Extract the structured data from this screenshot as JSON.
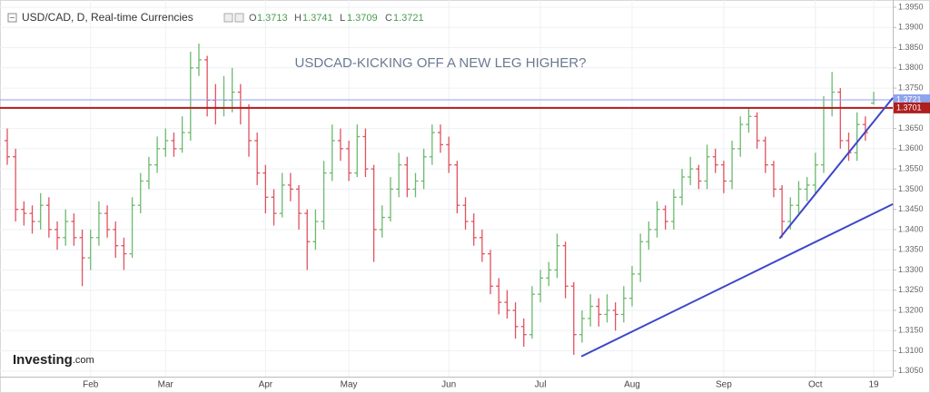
{
  "chart_data": {
    "type": "ohlc",
    "title": "USD/CAD, D, Real-time Currencies",
    "ohlc_labels": [
      "O",
      "H",
      "L",
      "C"
    ],
    "annotation": "USDCAD-KICKING OFF A NEW LEG HIGHER?",
    "logo": {
      "name": "Investing",
      "suffix": ".com"
    },
    "up_color": "#6cb96f",
    "down_color": "#e0525f",
    "categories": [
      null,
      null,
      null,
      null,
      null,
      null,
      null,
      null,
      null,
      null,
      "Feb",
      null,
      null,
      null,
      null,
      null,
      null,
      null,
      null,
      "Mar",
      null,
      null,
      null,
      null,
      null,
      null,
      null,
      null,
      null,
      null,
      null,
      "Apr",
      null,
      null,
      null,
      null,
      null,
      null,
      null,
      null,
      null,
      "May",
      null,
      null,
      null,
      null,
      null,
      null,
      null,
      null,
      null,
      null,
      null,
      "Jun",
      null,
      null,
      null,
      null,
      null,
      null,
      null,
      null,
      null,
      null,
      "Jul",
      null,
      null,
      null,
      null,
      null,
      null,
      null,
      null,
      null,
      null,
      "Aug",
      null,
      null,
      null,
      null,
      null,
      null,
      null,
      null,
      null,
      null,
      "Sep",
      null,
      null,
      null,
      null,
      null,
      null,
      null,
      null,
      null,
      null,
      "Oct",
      null,
      null,
      null,
      null,
      null,
      null,
      "19"
    ],
    "open": [
      1.362,
      1.358,
      1.345,
      1.344,
      1.342,
      1.346,
      1.34,
      1.338,
      1.342,
      1.338,
      1.333,
      1.338,
      1.344,
      1.34,
      1.336,
      1.334,
      1.346,
      1.352,
      1.356,
      1.36,
      1.362,
      1.36,
      1.364,
      1.38,
      1.382,
      1.372,
      1.37,
      1.372,
      1.374,
      1.37,
      1.362,
      1.354,
      1.348,
      1.344,
      1.351,
      1.35,
      1.344,
      1.337,
      1.342,
      1.354,
      1.362,
      1.36,
      1.354,
      1.363,
      1.355,
      1.34,
      1.343,
      1.35,
      1.356,
      1.35,
      1.352,
      1.358,
      1.364,
      1.361,
      1.356,
      1.346,
      1.342,
      1.338,
      1.334,
      1.326,
      1.322,
      1.32,
      1.316,
      1.314,
      1.324,
      1.328,
      1.33,
      1.336,
      1.326,
      1.314,
      1.318,
      1.321,
      1.319,
      1.32,
      1.319,
      1.323,
      1.329,
      1.337,
      1.34,
      1.345,
      1.342,
      1.348,
      1.353,
      1.355,
      1.352,
      1.358,
      1.356,
      1.352,
      1.36,
      1.366,
      1.368,
      1.362,
      1.356,
      1.35,
      1.342,
      1.346,
      1.35,
      1.351,
      1.356,
      1.37,
      1.374,
      1.362,
      1.359,
      1.366,
      1.3713
    ],
    "high": [
      1.365,
      1.36,
      1.347,
      1.346,
      1.349,
      1.348,
      1.342,
      1.345,
      1.344,
      1.34,
      1.34,
      1.347,
      1.346,
      1.342,
      1.338,
      1.348,
      1.354,
      1.358,
      1.363,
      1.365,
      1.364,
      1.368,
      1.384,
      1.386,
      1.383,
      1.376,
      1.378,
      1.38,
      1.376,
      1.371,
      1.364,
      1.356,
      1.35,
      1.354,
      1.354,
      1.351,
      1.345,
      1.345,
      1.357,
      1.366,
      1.365,
      1.362,
      1.366,
      1.365,
      1.356,
      1.346,
      1.353,
      1.359,
      1.358,
      1.354,
      1.36,
      1.366,
      1.366,
      1.363,
      1.357,
      1.348,
      1.344,
      1.34,
      1.335,
      1.328,
      1.325,
      1.322,
      1.318,
      1.326,
      1.33,
      1.332,
      1.339,
      1.337,
      1.327,
      1.32,
      1.324,
      1.323,
      1.324,
      1.322,
      1.326,
      1.331,
      1.339,
      1.342,
      1.347,
      1.346,
      1.35,
      1.355,
      1.358,
      1.356,
      1.361,
      1.36,
      1.357,
      1.362,
      1.368,
      1.37,
      1.369,
      1.363,
      1.357,
      1.351,
      1.348,
      1.352,
      1.353,
      1.359,
      1.373,
      1.379,
      1.375,
      1.364,
      1.369,
      1.368,
      1.3741
    ],
    "low": [
      1.356,
      1.342,
      1.341,
      1.339,
      1.34,
      1.338,
      1.335,
      1.336,
      1.336,
      1.326,
      1.33,
      1.336,
      1.338,
      1.333,
      1.33,
      1.333,
      1.344,
      1.35,
      1.354,
      1.358,
      1.358,
      1.359,
      1.362,
      1.378,
      1.368,
      1.366,
      1.368,
      1.369,
      1.366,
      1.358,
      1.351,
      1.344,
      1.341,
      1.343,
      1.347,
      1.34,
      1.33,
      1.335,
      1.34,
      1.352,
      1.357,
      1.352,
      1.353,
      1.353,
      1.332,
      1.338,
      1.342,
      1.348,
      1.348,
      1.348,
      1.35,
      1.356,
      1.359,
      1.354,
      1.344,
      1.34,
      1.336,
      1.332,
      1.324,
      1.319,
      1.318,
      1.313,
      1.311,
      1.313,
      1.322,
      1.326,
      1.328,
      1.323,
      1.309,
      1.312,
      1.316,
      1.316,
      1.317,
      1.315,
      1.317,
      1.321,
      1.327,
      1.335,
      1.338,
      1.34,
      1.34,
      1.346,
      1.351,
      1.35,
      1.35,
      1.354,
      1.349,
      1.35,
      1.358,
      1.364,
      1.36,
      1.354,
      1.348,
      1.338,
      1.34,
      1.344,
      1.347,
      1.349,
      1.354,
      1.368,
      1.36,
      1.357,
      1.357,
      1.362,
      1.3709
    ],
    "close": [
      1.358,
      1.345,
      1.344,
      1.342,
      1.346,
      1.34,
      1.338,
      1.342,
      1.338,
      1.333,
      1.338,
      1.344,
      1.34,
      1.336,
      1.334,
      1.346,
      1.352,
      1.356,
      1.36,
      1.362,
      1.36,
      1.364,
      1.38,
      1.382,
      1.372,
      1.37,
      1.372,
      1.374,
      1.37,
      1.362,
      1.354,
      1.348,
      1.344,
      1.351,
      1.35,
      1.344,
      1.337,
      1.342,
      1.354,
      1.362,
      1.36,
      1.354,
      1.363,
      1.355,
      1.34,
      1.343,
      1.35,
      1.356,
      1.35,
      1.352,
      1.358,
      1.364,
      1.361,
      1.356,
      1.346,
      1.342,
      1.338,
      1.334,
      1.326,
      1.322,
      1.32,
      1.316,
      1.314,
      1.324,
      1.328,
      1.33,
      1.336,
      1.326,
      1.314,
      1.318,
      1.321,
      1.319,
      1.32,
      1.319,
      1.323,
      1.329,
      1.337,
      1.34,
      1.345,
      1.342,
      1.348,
      1.353,
      1.355,
      1.352,
      1.358,
      1.356,
      1.352,
      1.36,
      1.366,
      1.368,
      1.362,
      1.356,
      1.35,
      1.342,
      1.346,
      1.35,
      1.351,
      1.356,
      1.37,
      1.374,
      1.362,
      1.359,
      1.366,
      1.364,
      1.3721
    ],
    "ylim": [
      1.3036,
      1.3968
    ],
    "yticks": [
      {
        "value": 1.305,
        "label": "1.3050"
      },
      {
        "value": 1.31,
        "label": "1.3100"
      },
      {
        "value": 1.315,
        "label": "1.3150"
      },
      {
        "value": 1.32,
        "label": "1.3200"
      },
      {
        "value": 1.325,
        "label": "1.3250"
      },
      {
        "value": 1.33,
        "label": "1.3300"
      },
      {
        "value": 1.335,
        "label": "1.3350"
      },
      {
        "value": 1.34,
        "label": "1.3400"
      },
      {
        "value": 1.345,
        "label": "1.3450"
      },
      {
        "value": 1.35,
        "label": "1.3500"
      },
      {
        "value": 1.355,
        "label": "1.3550"
      },
      {
        "value": 1.36,
        "label": "1.3600"
      },
      {
        "value": 1.365,
        "label": "1.3650"
      },
      {
        "value": 1.37,
        "label": "1.3700"
      },
      {
        "value": 1.375,
        "label": "1.3750"
      },
      {
        "value": 1.38,
        "label": "1.3800"
      },
      {
        "value": 1.385,
        "label": "1.3850"
      },
      {
        "value": 1.39,
        "label": "1.3900"
      },
      {
        "value": 1.395,
        "label": "1.3950"
      }
    ],
    "grid": true,
    "hlines": [
      {
        "value": 1.3701,
        "label": "1.3701",
        "color": "#b01e1e"
      }
    ],
    "last_price_color": "#8fa3ee",
    "trendlines": [
      {
        "x": [
          68.9,
          106.3
        ],
        "y": [
          1.3086,
          1.3463
        ],
        "color": "#3d47c8"
      },
      {
        "x": [
          92.7,
          106.3
        ],
        "y": [
          1.3378,
          1.3726
        ],
        "color": "#3d47c8"
      }
    ]
  }
}
